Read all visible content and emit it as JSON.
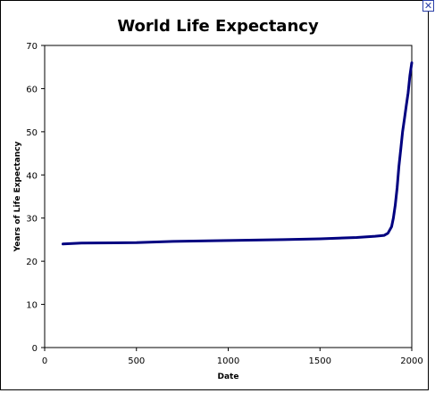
{
  "close_icon": "close-icon",
  "chart_data": {
    "type": "line",
    "title": "World Life Expectancy",
    "xlabel": "Date",
    "ylabel": "Years of Life Expectancy",
    "xlim": [
      0,
      2000
    ],
    "ylim": [
      0,
      70
    ],
    "xticks": [
      0,
      500,
      1000,
      1500,
      2000
    ],
    "yticks": [
      0,
      10,
      20,
      30,
      40,
      50,
      60,
      70
    ],
    "grid": false,
    "line_color": "#000080",
    "series": [
      {
        "x": [
          100,
          200,
          500,
          700,
          1000,
          1300,
          1500,
          1700,
          1800,
          1850,
          1870,
          1890,
          1900,
          1910,
          1920,
          1930,
          1940,
          1950,
          1960,
          1970,
          1980,
          1990,
          2000
        ],
        "values": [
          24,
          24.2,
          24.3,
          24.6,
          24.8,
          25,
          25.2,
          25.5,
          25.8,
          26,
          26.5,
          28,
          30,
          33,
          37,
          42,
          46,
          50,
          53,
          56,
          59,
          63,
          66
        ]
      }
    ]
  }
}
